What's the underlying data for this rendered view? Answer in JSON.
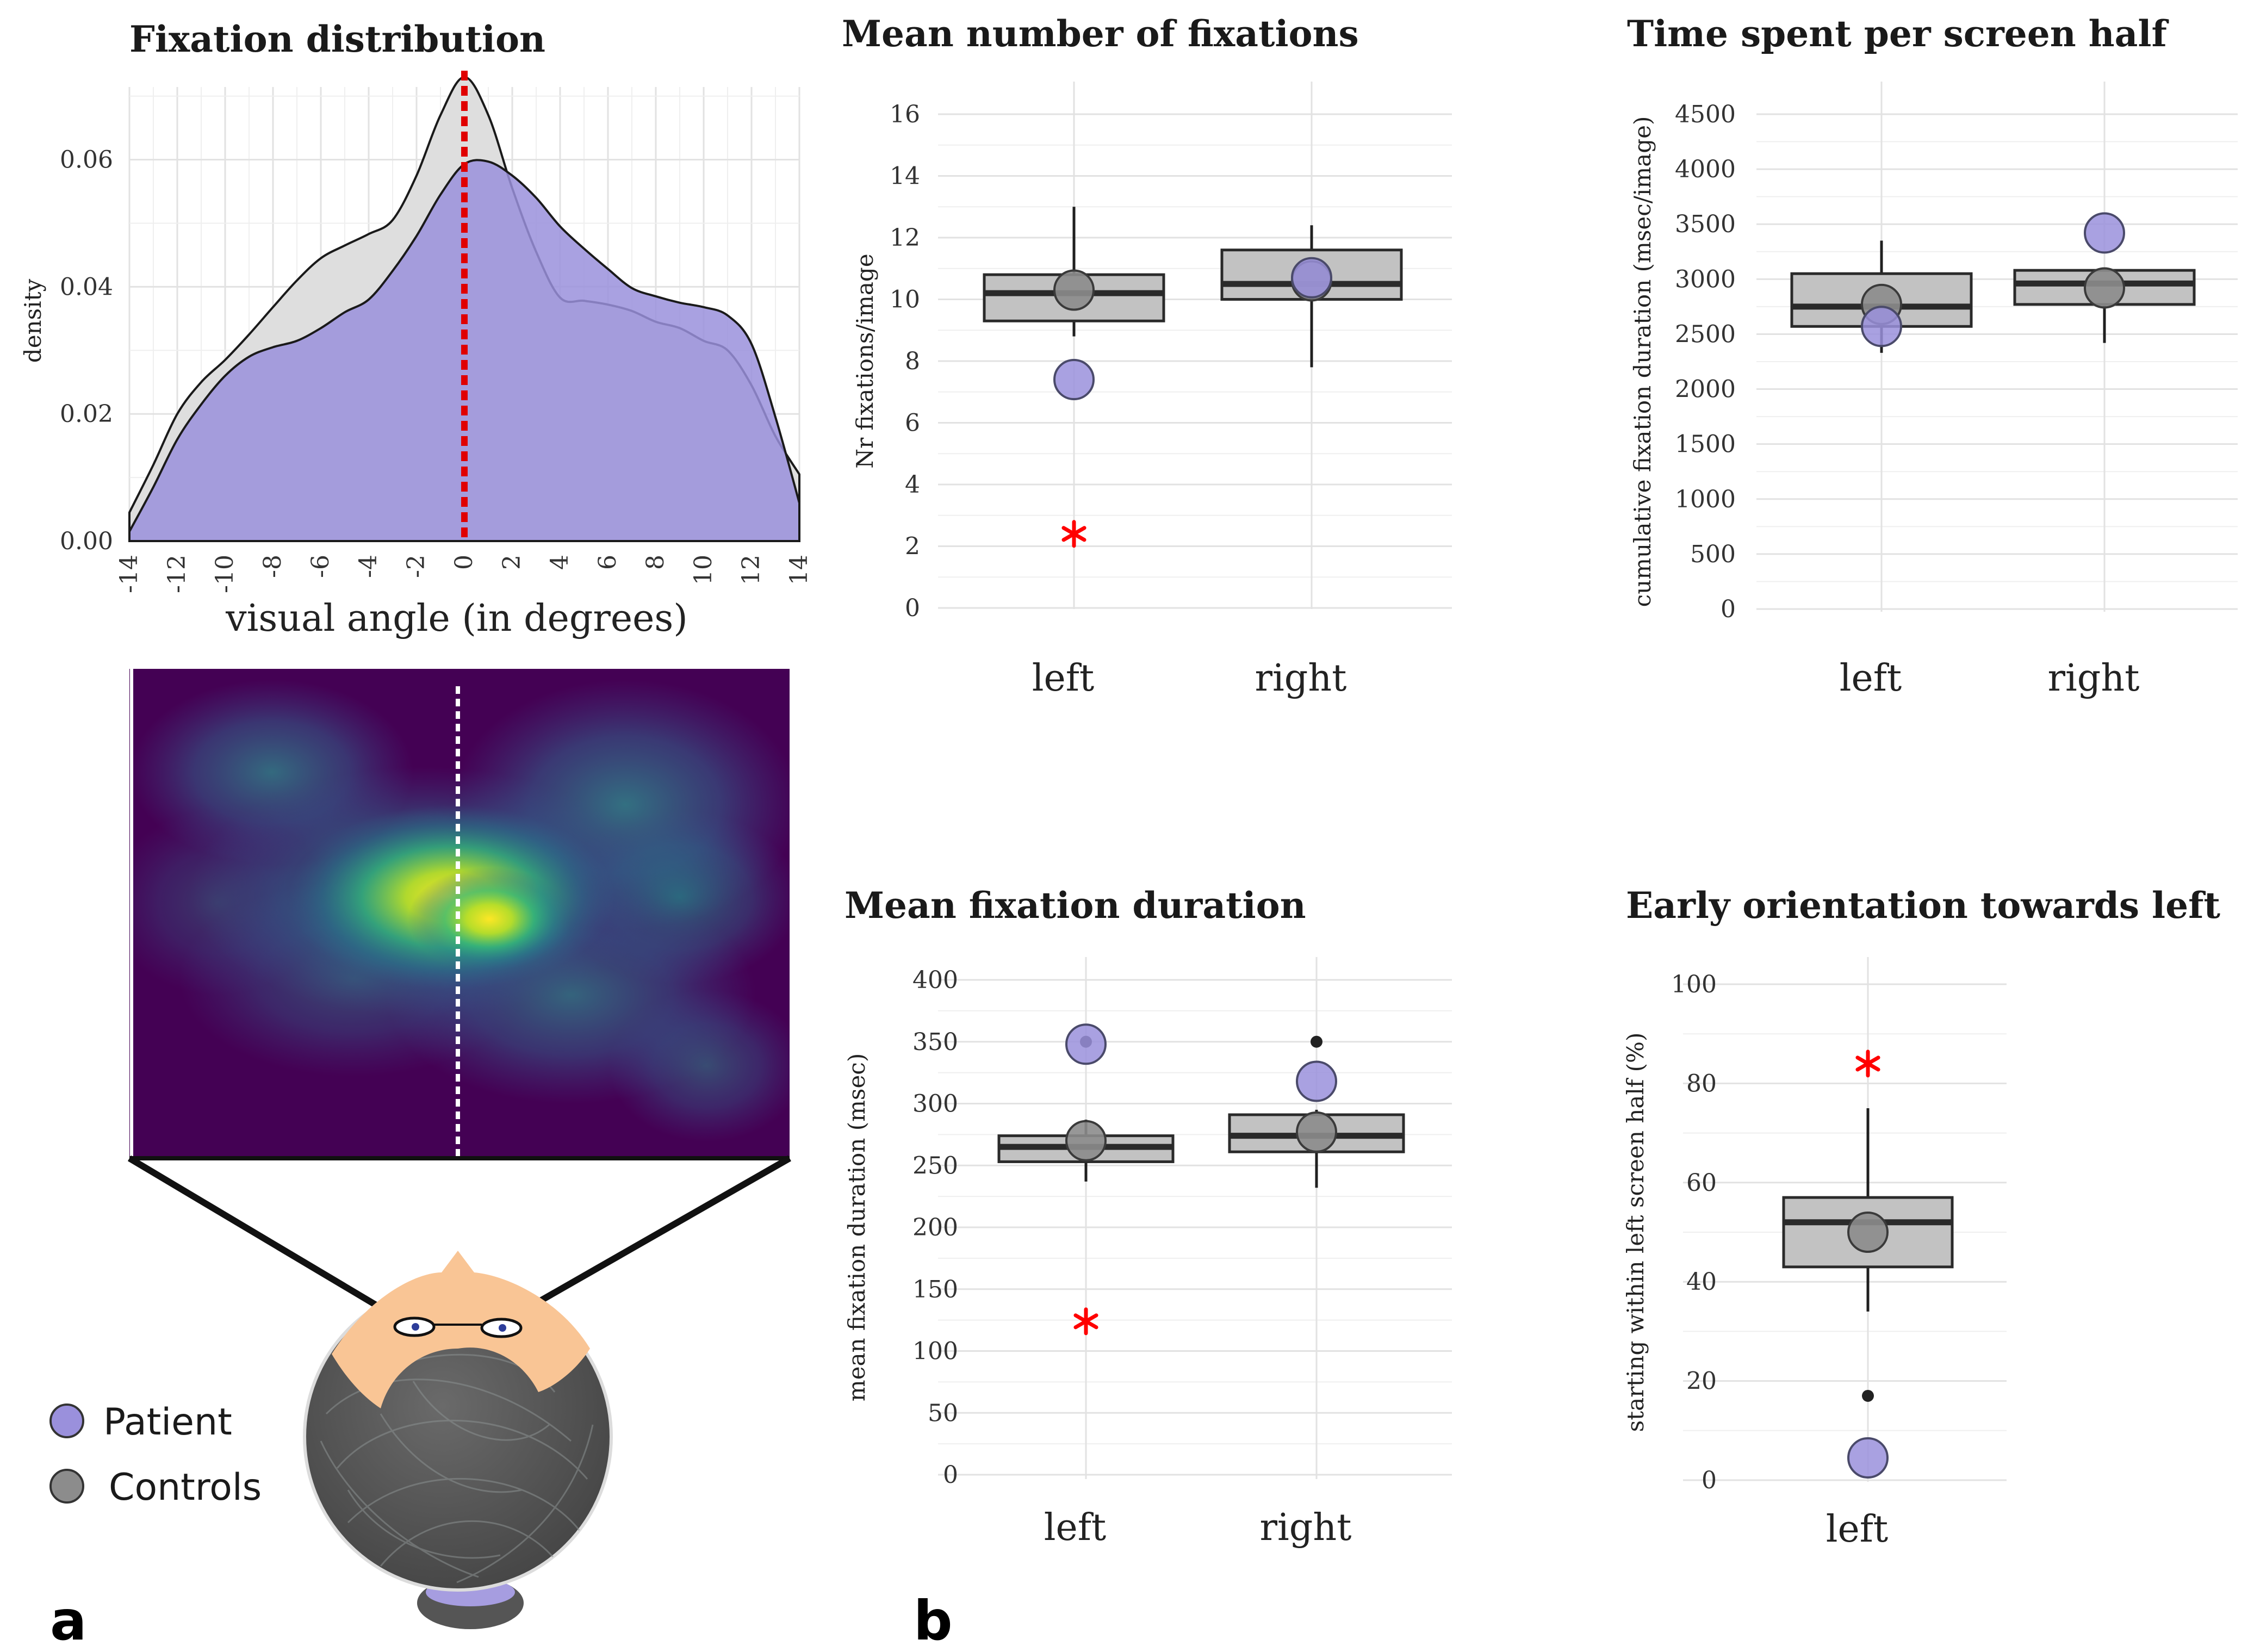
{
  "colors": {
    "patient": "#9a90dc",
    "controls": "#8c8c8c",
    "box": "#c2c2c2",
    "asterisk": "#ff0000"
  },
  "panel_labels": {
    "a": "a",
    "b": "b"
  },
  "legend": {
    "patient": "Patient",
    "controls": "Controls"
  },
  "chart_data": [
    {
      "id": "density",
      "type": "area",
      "title": "Fixation distribution",
      "xlabel": "visual angle (in degrees)",
      "ylabel": "density",
      "xlim": [
        -14,
        14
      ],
      "ylim": [
        0,
        0.074
      ],
      "xticks": [
        -14,
        -12,
        -10,
        -8,
        -6,
        -4,
        -2,
        0,
        2,
        4,
        6,
        8,
        10,
        12,
        14
      ],
      "yticks": [
        0,
        0.02,
        0.04,
        0.06
      ],
      "ytick_labels": [
        "0.00",
        "0.02",
        "0.04",
        "0.06"
      ],
      "midline_x": 0,
      "series": [
        {
          "name": "Controls",
          "x": [
            -14,
            -13,
            -12,
            -11,
            -10,
            -9,
            -8,
            -7,
            -6,
            -5,
            -4,
            -3,
            -2,
            -1,
            0,
            1,
            2,
            3,
            4,
            5,
            6,
            7,
            8,
            9,
            10,
            11,
            12,
            13,
            14
          ],
          "y": [
            0.0045,
            0.012,
            0.02,
            0.025,
            0.0285,
            0.0325,
            0.0368,
            0.041,
            0.0445,
            0.0465,
            0.0483,
            0.0505,
            0.0575,
            0.067,
            0.073,
            0.067,
            0.0555,
            0.0455,
            0.0383,
            0.0378,
            0.0372,
            0.0362,
            0.0345,
            0.0335,
            0.0315,
            0.03,
            0.0245,
            0.0165,
            0.0105
          ]
        },
        {
          "name": "Patient",
          "x": [
            -14,
            -13,
            -12,
            -11,
            -10,
            -9,
            -8,
            -7,
            -6,
            -5,
            -4,
            -3,
            -2,
            -1,
            0,
            1,
            2,
            3,
            4,
            5,
            6,
            7,
            8,
            9,
            10,
            11,
            12,
            13,
            14
          ],
          "y": [
            0.0015,
            0.0085,
            0.016,
            0.0215,
            0.026,
            0.029,
            0.0305,
            0.0315,
            0.0335,
            0.036,
            0.038,
            0.0425,
            0.048,
            0.0545,
            0.0593,
            0.0597,
            0.0575,
            0.054,
            0.0495,
            0.046,
            0.0428,
            0.0398,
            0.0385,
            0.0375,
            0.0368,
            0.0355,
            0.031,
            0.0195,
            0.006
          ]
        }
      ]
    },
    {
      "id": "heatmap",
      "type": "heatmap",
      "title": "",
      "colormap": [
        "#440154",
        "#31688e",
        "#35b779",
        "#fde725"
      ]
    },
    {
      "id": "nfix",
      "type": "boxplot",
      "title": "Mean number of fixations",
      "ylabel": "Nr fixations/image",
      "categories": [
        "left",
        "right"
      ],
      "ylim": [
        0,
        16
      ],
      "yticks": [
        0,
        2,
        4,
        6,
        8,
        10,
        12,
        14,
        16
      ],
      "boxes": [
        {
          "q1": 9.3,
          "median": 10.2,
          "q3": 10.8,
          "whisker_low": 8.8,
          "whisker_high": 13.0,
          "outliers": []
        },
        {
          "q1": 10.0,
          "median": 10.5,
          "q3": 11.6,
          "whisker_low": 7.8,
          "whisker_high": 12.4,
          "outliers": []
        }
      ],
      "controls_mean": [
        10.3,
        10.6
      ],
      "patient": [
        7.4,
        10.7
      ],
      "asterisk": [
        {
          "category": "left",
          "y": 2.4
        }
      ]
    },
    {
      "id": "time",
      "type": "boxplot",
      "title": "Time spent per screen half",
      "ylabel": "cumulative fixation duration (msec/image)",
      "categories": [
        "left",
        "right"
      ],
      "ylim": [
        0,
        4500
      ],
      "yticks": [
        0,
        500,
        1000,
        1500,
        2000,
        2500,
        3000,
        3500,
        4000,
        4500
      ],
      "boxes": [
        {
          "q1": 2570,
          "median": 2750,
          "q3": 3050,
          "whisker_low": 2330,
          "whisker_high": 3350,
          "outliers": []
        },
        {
          "q1": 2770,
          "median": 2960,
          "q3": 3080,
          "whisker_low": 2420,
          "whisker_high": 3100,
          "outliers": []
        }
      ],
      "controls_mean": [
        2770,
        2920
      ],
      "patient": [
        2570,
        3420
      ],
      "asterisk": []
    },
    {
      "id": "duration",
      "type": "boxplot",
      "title": "Mean fixation duration",
      "ylabel": "mean fixation duration (msec)",
      "categories": [
        "left",
        "right"
      ],
      "ylim": [
        0,
        400
      ],
      "yticks": [
        0,
        50,
        100,
        150,
        200,
        250,
        300,
        350,
        400
      ],
      "boxes": [
        {
          "q1": 253,
          "median": 265,
          "q3": 274,
          "whisker_low": 237,
          "whisker_high": 287,
          "outliers": [
            350
          ]
        },
        {
          "q1": 261,
          "median": 274,
          "q3": 291,
          "whisker_low": 232,
          "whisker_high": 295,
          "outliers": [
            350
          ]
        }
      ],
      "controls_mean": [
        270,
        277
      ],
      "patient": [
        348,
        318
      ],
      "asterisk": [
        {
          "category": "left",
          "y": 124
        }
      ]
    },
    {
      "id": "early",
      "type": "boxplot",
      "title": "Early orientation towards left",
      "ylabel": "starting within left screen half (%)",
      "categories": [
        "left"
      ],
      "ylim": [
        0,
        100
      ],
      "yticks": [
        0,
        20,
        40,
        60,
        80,
        100
      ],
      "boxes": [
        {
          "q1": 43,
          "median": 52,
          "q3": 57,
          "whisker_low": 34,
          "whisker_high": 75,
          "outliers": [
            17
          ]
        }
      ],
      "controls_mean": [
        50
      ],
      "patient": [
        4.5
      ],
      "asterisk": [
        {
          "category": "left",
          "y": 84
        }
      ]
    }
  ]
}
